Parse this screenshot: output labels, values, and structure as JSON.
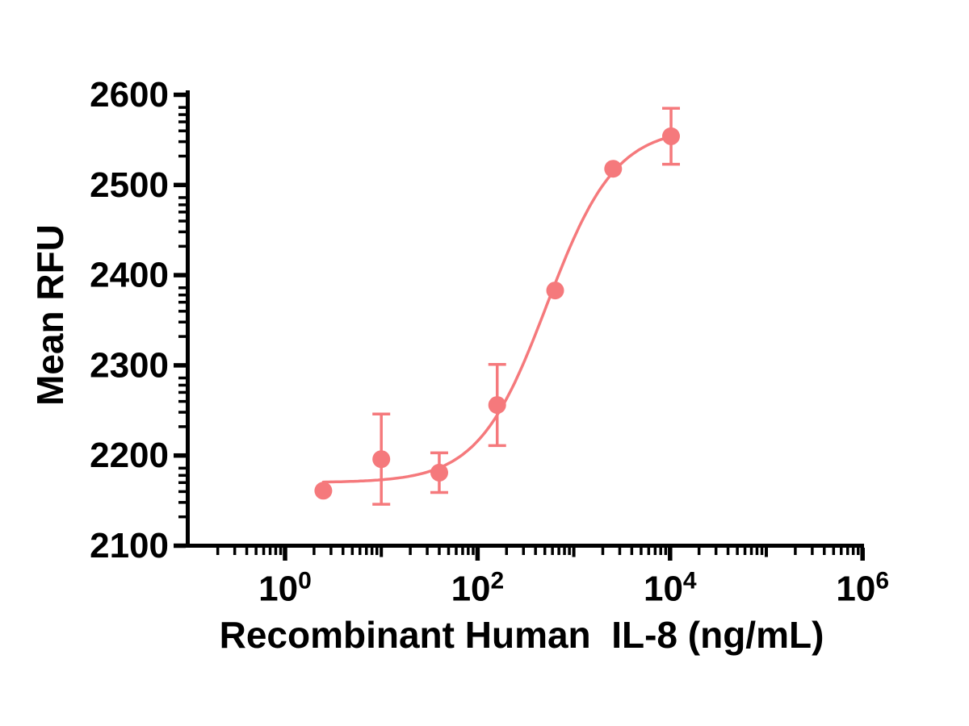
{
  "figure": {
    "background": "#ffffff",
    "text_color": "#000000",
    "accent_color": "#f5797c"
  },
  "chart_data": {
    "type": "scatter",
    "title": "",
    "xlabel": "Recombinant Human  IL-8 (ng/mL)",
    "ylabel": "Mean RFU",
    "grid": false,
    "legend": false,
    "x_scale": "log10",
    "x_range": [
      0.1,
      1000000
    ],
    "x_tick_base": "10",
    "x_major_tick_exponents": [
      0,
      2,
      4,
      6
    ],
    "x_minor_ticks": "log-spaced 2–9 per decade, unlabeled short ticks at odd powers of 10",
    "y_scale": "linear",
    "y_range": [
      2100,
      2600
    ],
    "y_major_ticks": [
      2100,
      2200,
      2300,
      2400,
      2500,
      2600
    ],
    "y_tick_labels": [
      "2100",
      "2200",
      "2300",
      "2400",
      "2500",
      "2600"
    ],
    "y_minor_fractions_from_upper_major": [
      0.14,
      0.22,
      0.3,
      0.4,
      0.52,
      0.68
    ],
    "series": [
      {
        "name": "Mean RFU vs Recombinant Human IL-8",
        "marker": "filled-circle",
        "error_bars": "vertical with caps",
        "points": [
          {
            "x_ng_ml": 2.5,
            "mean_rfu": 2161,
            "err": null
          },
          {
            "x_ng_ml": 10,
            "mean_rfu": 2196,
            "err": 50
          },
          {
            "x_ng_ml": 40,
            "mean_rfu": 2181,
            "err": 22
          },
          {
            "x_ng_ml": 160,
            "mean_rfu": 2256,
            "err": 45
          },
          {
            "x_ng_ml": 640,
            "mean_rfu": 2383,
            "err": null
          },
          {
            "x_ng_ml": 2560,
            "mean_rfu": 2518,
            "err": null
          },
          {
            "x_ng_ml": 10240,
            "mean_rfu": 2554,
            "err": 31
          }
        ]
      }
    ],
    "fit_curve": {
      "model": "4PL sigmoidal dose-response",
      "bottom": 2170,
      "top": 2564,
      "log_ec50": 2.72,
      "hill_slope": 1.22,
      "x_start": 2.5,
      "x_end": 10240
    }
  }
}
